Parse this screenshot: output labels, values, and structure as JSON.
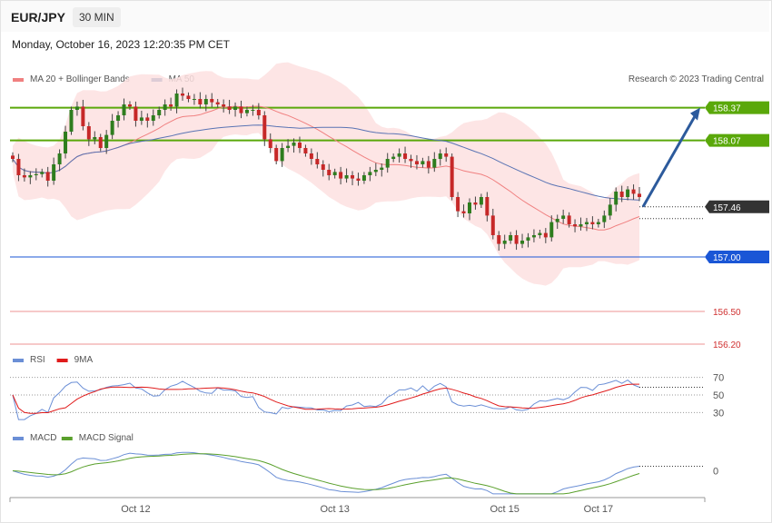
{
  "header": {
    "pair": "EUR/JPY",
    "timeframe": "30 MIN"
  },
  "datetime": "Monday, October 16, 2023 12:20:35 PM CET",
  "legend": {
    "price": [
      {
        "name": "MA 20 + Bollinger Bands",
        "color": "#f08080"
      },
      {
        "name": "MA 50",
        "color": "#2c5a9c"
      }
    ],
    "rsi": [
      {
        "name": "RSI",
        "color": "#6b8fd6"
      },
      {
        "name": "9MA",
        "color": "#e01b1b"
      }
    ],
    "macd": [
      {
        "name": "MACD",
        "color": "#6b8fd6"
      },
      {
        "name": "MACD Signal",
        "color": "#5aa02c"
      }
    ]
  },
  "copyright": "Research © 2023 Trading Central",
  "chart_data": {
    "type": "candlestick",
    "price_range": [
      155.9,
      158.9
    ],
    "levels": [
      {
        "label": "158.37",
        "value": 158.37,
        "color": "#5aa80a",
        "style": "resistance"
      },
      {
        "label": "158.07",
        "value": 158.07,
        "color": "#5aa80a",
        "style": "resistance"
      },
      {
        "label": "157.46",
        "value": 157.46,
        "color": "#333333",
        "style": "current"
      },
      {
        "label": "157.00",
        "value": 157.0,
        "color": "#1a56d6",
        "style": "pivot"
      },
      {
        "label": "156.50",
        "value": 156.5,
        "color": "#e34d4d",
        "style": "support"
      },
      {
        "label": "156.20",
        "value": 156.2,
        "color": "#e34d4d",
        "style": "support"
      }
    ],
    "target_arrow": {
      "from_price": 157.46,
      "to_price": 158.37,
      "color": "#2c5a9c"
    },
    "x_ticks": [
      "Oct 12",
      "Oct 13",
      "Oct 15",
      "Oct 17"
    ],
    "close": [
      157.9,
      157.75,
      157.73,
      157.75,
      157.76,
      157.78,
      157.7,
      157.85,
      157.95,
      158.15,
      158.35,
      158.38,
      158.2,
      158.08,
      158.1,
      158.0,
      158.12,
      158.25,
      158.3,
      158.4,
      158.38,
      158.25,
      158.28,
      158.25,
      158.3,
      158.35,
      158.4,
      158.38,
      158.5,
      158.48,
      158.45,
      158.45,
      158.4,
      158.45,
      158.42,
      158.4,
      158.38,
      158.35,
      158.38,
      158.32,
      158.35,
      158.35,
      158.3,
      158.08,
      158.0,
      157.88,
      158.0,
      158.02,
      158.05,
      158.0,
      157.95,
      157.9,
      157.85,
      157.8,
      157.75,
      157.78,
      157.72,
      157.75,
      157.72,
      157.7,
      157.75,
      157.78,
      157.8,
      157.82,
      157.9,
      157.92,
      157.95,
      157.9,
      157.88,
      157.85,
      157.88,
      157.82,
      157.9,
      157.95,
      157.92,
      157.55,
      157.42,
      157.4,
      157.5,
      157.48,
      157.55,
      157.38,
      157.2,
      157.12,
      157.15,
      157.2,
      157.12,
      157.15,
      157.18,
      157.2,
      157.22,
      157.18,
      157.32,
      157.35,
      157.38,
      157.3,
      157.28,
      157.3,
      157.32,
      157.3,
      157.32,
      157.38,
      157.48,
      157.6,
      157.55,
      157.62,
      157.58,
      157.55
    ]
  },
  "rsi": {
    "levels": [
      {
        "label": "70",
        "value": 70
      },
      {
        "label": "50",
        "value": 50
      },
      {
        "label": "30",
        "value": 30
      }
    ],
    "range": [
      20,
      80
    ]
  },
  "macd": {
    "zero_label": "0",
    "range": [
      -0.25,
      0.25
    ]
  }
}
